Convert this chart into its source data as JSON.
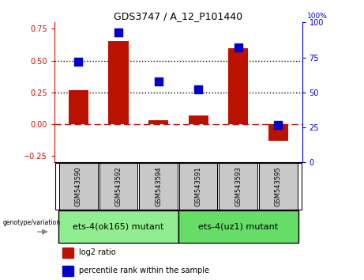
{
  "title": "GDS3747 / A_12_P101440",
  "samples": [
    "GSM543590",
    "GSM543592",
    "GSM543594",
    "GSM543591",
    "GSM543593",
    "GSM543595"
  ],
  "log2_ratio": [
    0.27,
    0.65,
    0.03,
    0.07,
    0.6,
    -0.13
  ],
  "percentile_rank": [
    72,
    93,
    58,
    52,
    82,
    27
  ],
  "bar_color": "#BB1100",
  "dot_color": "#0000CC",
  "group1_label": "ets-4(ok165) mutant",
  "group2_label": "ets-4(uz1) mutant",
  "group1_color": "#90EE90",
  "group2_color": "#66DD66",
  "ylabel_left_color": "#CC1100",
  "ylabel_right_color": "#0000CC",
  "ylim_left": [
    -0.3,
    0.8
  ],
  "ylim_right": [
    0,
    100
  ],
  "yticks_left": [
    -0.25,
    0.0,
    0.25,
    0.5,
    0.75
  ],
  "yticks_right": [
    0,
    25,
    50,
    75,
    100
  ],
  "hline_positions": [
    0.25,
    0.5
  ],
  "zero_line_y": 0.0,
  "background_color": "#ffffff",
  "legend_labels": [
    "log2 ratio",
    "percentile rank within the sample"
  ],
  "bar_width": 0.5,
  "dot_size": 45,
  "sample_box_color": "#C8C8C8",
  "title_fontsize": 9,
  "tick_fontsize": 7,
  "legend_fontsize": 7,
  "group_fontsize": 8,
  "sample_fontsize": 6
}
